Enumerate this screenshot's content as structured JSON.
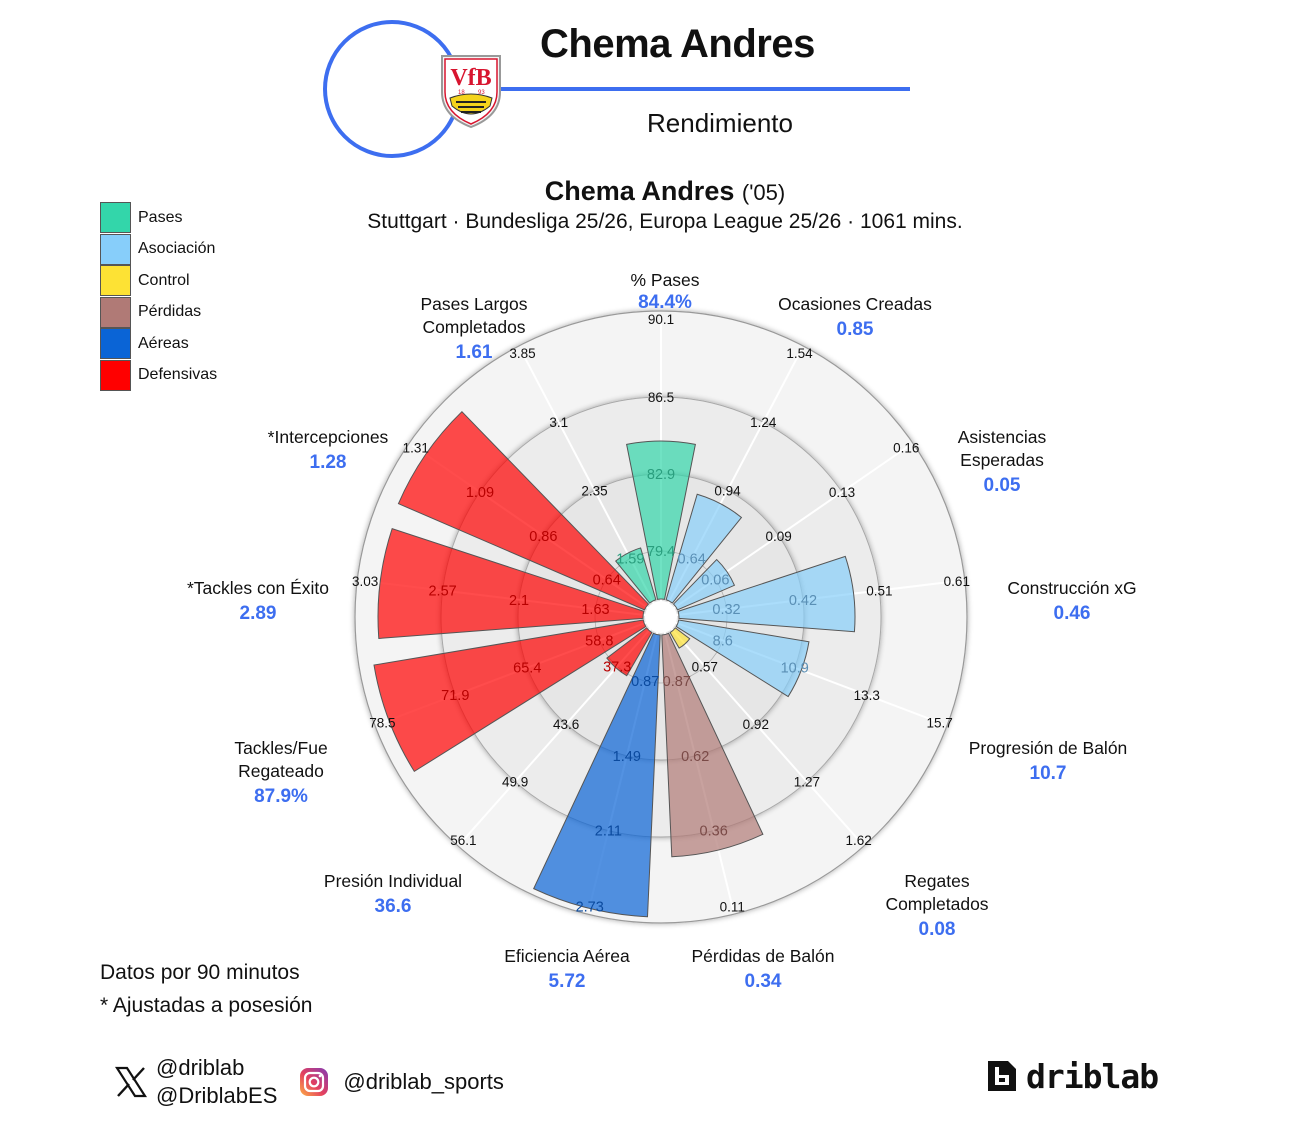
{
  "header": {
    "player_name": "Chema Andres",
    "subtitle": "Rendimiento",
    "crest": "vfb-stuttgart-crest",
    "accent_color": "#3d6ef0"
  },
  "chart_heading": {
    "name": "Chema Andres",
    "age": "('05)",
    "context": "Stuttgart · Bundesliga 25/26, Europa League 25/26 · 1061 mins."
  },
  "legend": [
    {
      "label": "Pases",
      "color": "#33d6aa"
    },
    {
      "label": "Asociación",
      "color": "#87cefa"
    },
    {
      "label": "Control",
      "color": "#fde234"
    },
    {
      "label": "Pérdidas",
      "color": "#b07a76"
    },
    {
      "label": "Aéreas",
      "color": "#0a64d6"
    },
    {
      "label": "Defensivas",
      "color": "#ff0000"
    }
  ],
  "notes": {
    "line1": "Datos por 90 minutos",
    "line2": "* Ajustadas a posesión"
  },
  "footer": {
    "x_handle_1": "@driblab",
    "x_handle_2": "@DriblabES",
    "instagram_handle": "@driblab_sports",
    "brand": "driblab"
  },
  "chart_data": {
    "type": "polar-bar",
    "title": "Chema Andres ('05)",
    "subtitle": "Stuttgart · Bundesliga 25/26, Europa League 25/26 · 1061 mins.",
    "legend_position": "top-left",
    "grid": true,
    "metrics": [
      {
        "name": "% Pases",
        "value": "84.4%",
        "group": "Pases",
        "ticks": [
          "79.4",
          "82.9",
          "86.5",
          "90.1"
        ],
        "bar_r": 176
      },
      {
        "name": "Ocasiones Creadas",
        "value": "0.85",
        "group": "Asociación",
        "ticks": [
          "0.64",
          "0.94",
          "1.24",
          "1.54"
        ],
        "bar_r": 128
      },
      {
        "name": "Asistencias Esperadas",
        "value": "0.05",
        "group": "Asociación",
        "ticks": [
          "0.06",
          "0.09",
          "0.13",
          "0.16"
        ],
        "bar_r": 80
      },
      {
        "name": "Construcción xG",
        "value": "0.46",
        "group": "Asociación",
        "ticks": [
          "0.32",
          "0.42",
          "0.51",
          "0.61"
        ],
        "bar_r": 194
      },
      {
        "name": "Progresión de Balón",
        "value": "10.7",
        "group": "Asociación",
        "ticks": [
          "8.6",
          "10.9",
          "13.3",
          "15.7"
        ],
        "bar_r": 150
      },
      {
        "name": "Regates Completados",
        "value": "0.08",
        "group": "Control",
        "ticks": [
          "0.57",
          "0.92",
          "1.27",
          "1.62"
        ],
        "bar_r": 36
      },
      {
        "name": "Pérdidas de Balón",
        "value": "0.34",
        "group": "Pérdidas",
        "ticks": [
          "0.87",
          "0.62",
          "0.36",
          "0.11"
        ],
        "bar_r": 240
      },
      {
        "name": "Eficiencia Aérea",
        "value": "5.72",
        "group": "Aéreas",
        "ticks": [
          "0.87",
          "1.49",
          "2.11",
          "2.73"
        ],
        "bar_r": 300
      },
      {
        "name": "Presión Individual",
        "value": "36.6",
        "group": "Defensivas",
        "ticks": [
          "37.3",
          "43.6",
          "49.9",
          "56.1"
        ],
        "bar_r": 68
      },
      {
        "name": "Tackles/Fue Regateado",
        "value": "87.9%",
        "group": "Defensivas",
        "ticks": [
          "58.8",
          "65.4",
          "71.9",
          "78.5"
        ],
        "bar_r": 291
      },
      {
        "name": "*Tackles con Éxito",
        "value": "2.89",
        "group": "Defensivas",
        "ticks": [
          "1.63",
          "2.1",
          "2.57",
          "3.03"
        ],
        "bar_r": 283
      },
      {
        "name": "*Intercepciones",
        "value": "1.28",
        "group": "Defensivas",
        "ticks": [
          "0.64",
          "0.86",
          "1.09",
          "1.31"
        ],
        "bar_r": 286
      },
      {
        "name": "Pases Largos Completados",
        "value": "1.61",
        "group": "Pases",
        "ticks": [
          "1.59",
          "2.35",
          "3.1",
          "3.85"
        ],
        "bar_r": 72
      }
    ]
  }
}
